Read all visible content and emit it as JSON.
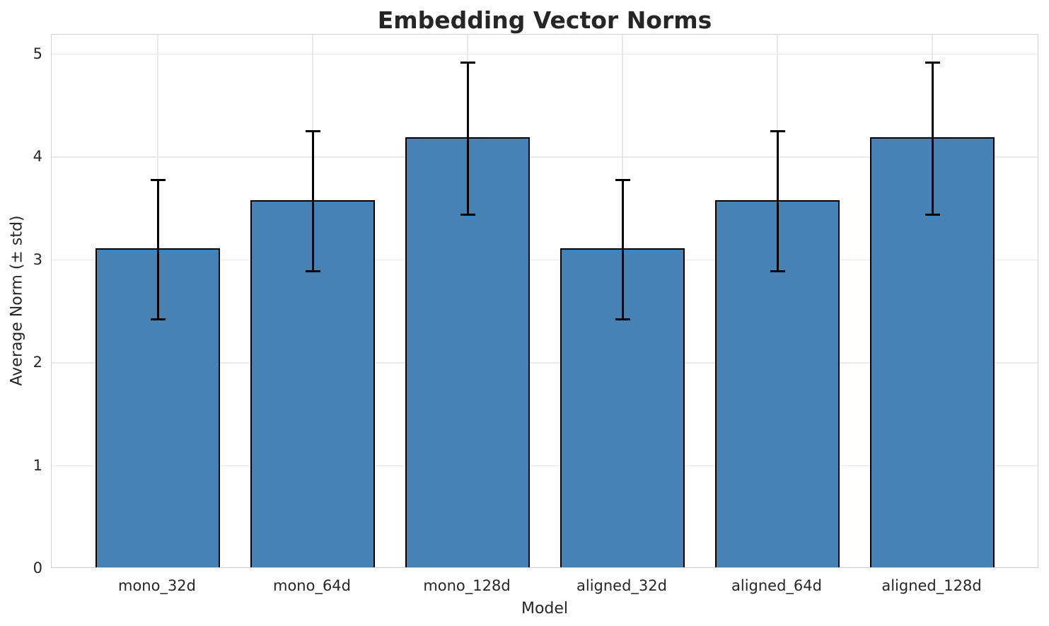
{
  "chart_data": {
    "type": "bar",
    "title": "Embedding Vector Norms",
    "xlabel": "Model",
    "ylabel": "Average Norm (± std)",
    "categories": [
      "mono_32d",
      "mono_64d",
      "mono_128d",
      "aligned_32d",
      "aligned_64d",
      "aligned_128d"
    ],
    "values": [
      3.1,
      3.57,
      4.18,
      3.1,
      3.57,
      4.18
    ],
    "errors": [
      0.68,
      0.68,
      0.74,
      0.68,
      0.68,
      0.74
    ],
    "yticks": [
      0,
      1,
      2,
      3,
      4,
      5
    ],
    "ylim": [
      0,
      5.19
    ],
    "grid": true,
    "legend": false,
    "error_style": "caps",
    "colors": {
      "bar_fill": "#4682b4",
      "bar_edge": "#000000",
      "error_bar": "#000000",
      "grid_line": "#e9e9e9",
      "spine": "#d0d0d0",
      "text": "#262626"
    }
  }
}
